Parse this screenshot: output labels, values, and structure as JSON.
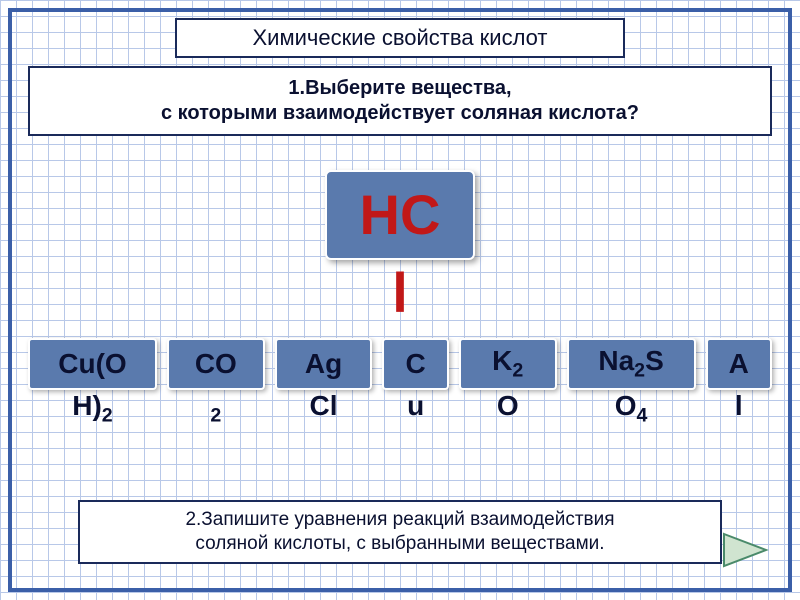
{
  "colors": {
    "grid_line": "#b8c8e8",
    "border": "#3b5fa8",
    "box_border": "#1a2a5a",
    "box_bg": "#ffffff",
    "tile_bg": "#5a7aad",
    "tile_border": "#ffffff",
    "text": "#0a1030",
    "main_formula": "#c11818",
    "next_fill": "#d0e4d0",
    "next_stroke": "#4a8a6a"
  },
  "typography": {
    "title_fontsize": 22,
    "question_fontsize": 20,
    "main_formula_fontsize": 56,
    "option_fontsize": 28,
    "instruction_fontsize": 19,
    "family": "Arial"
  },
  "title": "Химические свойства кислот",
  "question": {
    "line1": "1.Выберите вещества,",
    "line2": "с которыми взаимодействует соляная кислота?"
  },
  "main_compound": {
    "top": "HC",
    "overflow": "l",
    "full": "HCl"
  },
  "options": [
    {
      "top_html": "Cu(O",
      "overflow_html": "H)<sub>2</sub>",
      "full": "Cu(OH)2",
      "width": "wider"
    },
    {
      "top_html": "CO",
      "overflow_html": "<sub>2</sub>",
      "full": "CO2",
      "width": "mid"
    },
    {
      "top_html": "Ag",
      "overflow_html": "Cl",
      "full": "AgCl",
      "width": "mid"
    },
    {
      "top_html": "C",
      "overflow_html": "u",
      "full": "Cu",
      "width": "narrow"
    },
    {
      "top_html": "K<sub>2</sub>",
      "overflow_html": "O",
      "full": "K2O",
      "width": "mid"
    },
    {
      "top_html": "Na<sub>2</sub>S",
      "overflow_html": "O<sub>4</sub>",
      "full": "Na2SO4",
      "width": "wider"
    },
    {
      "top_html": "A",
      "overflow_html": "l",
      "full": "Al",
      "width": "narrow"
    }
  ],
  "instruction": {
    "line1": "2.Запишите уравнения реакций взаимодействия",
    "line2": "соляной кислоты, с выбранными веществами."
  },
  "next_button": {
    "label": "next"
  }
}
